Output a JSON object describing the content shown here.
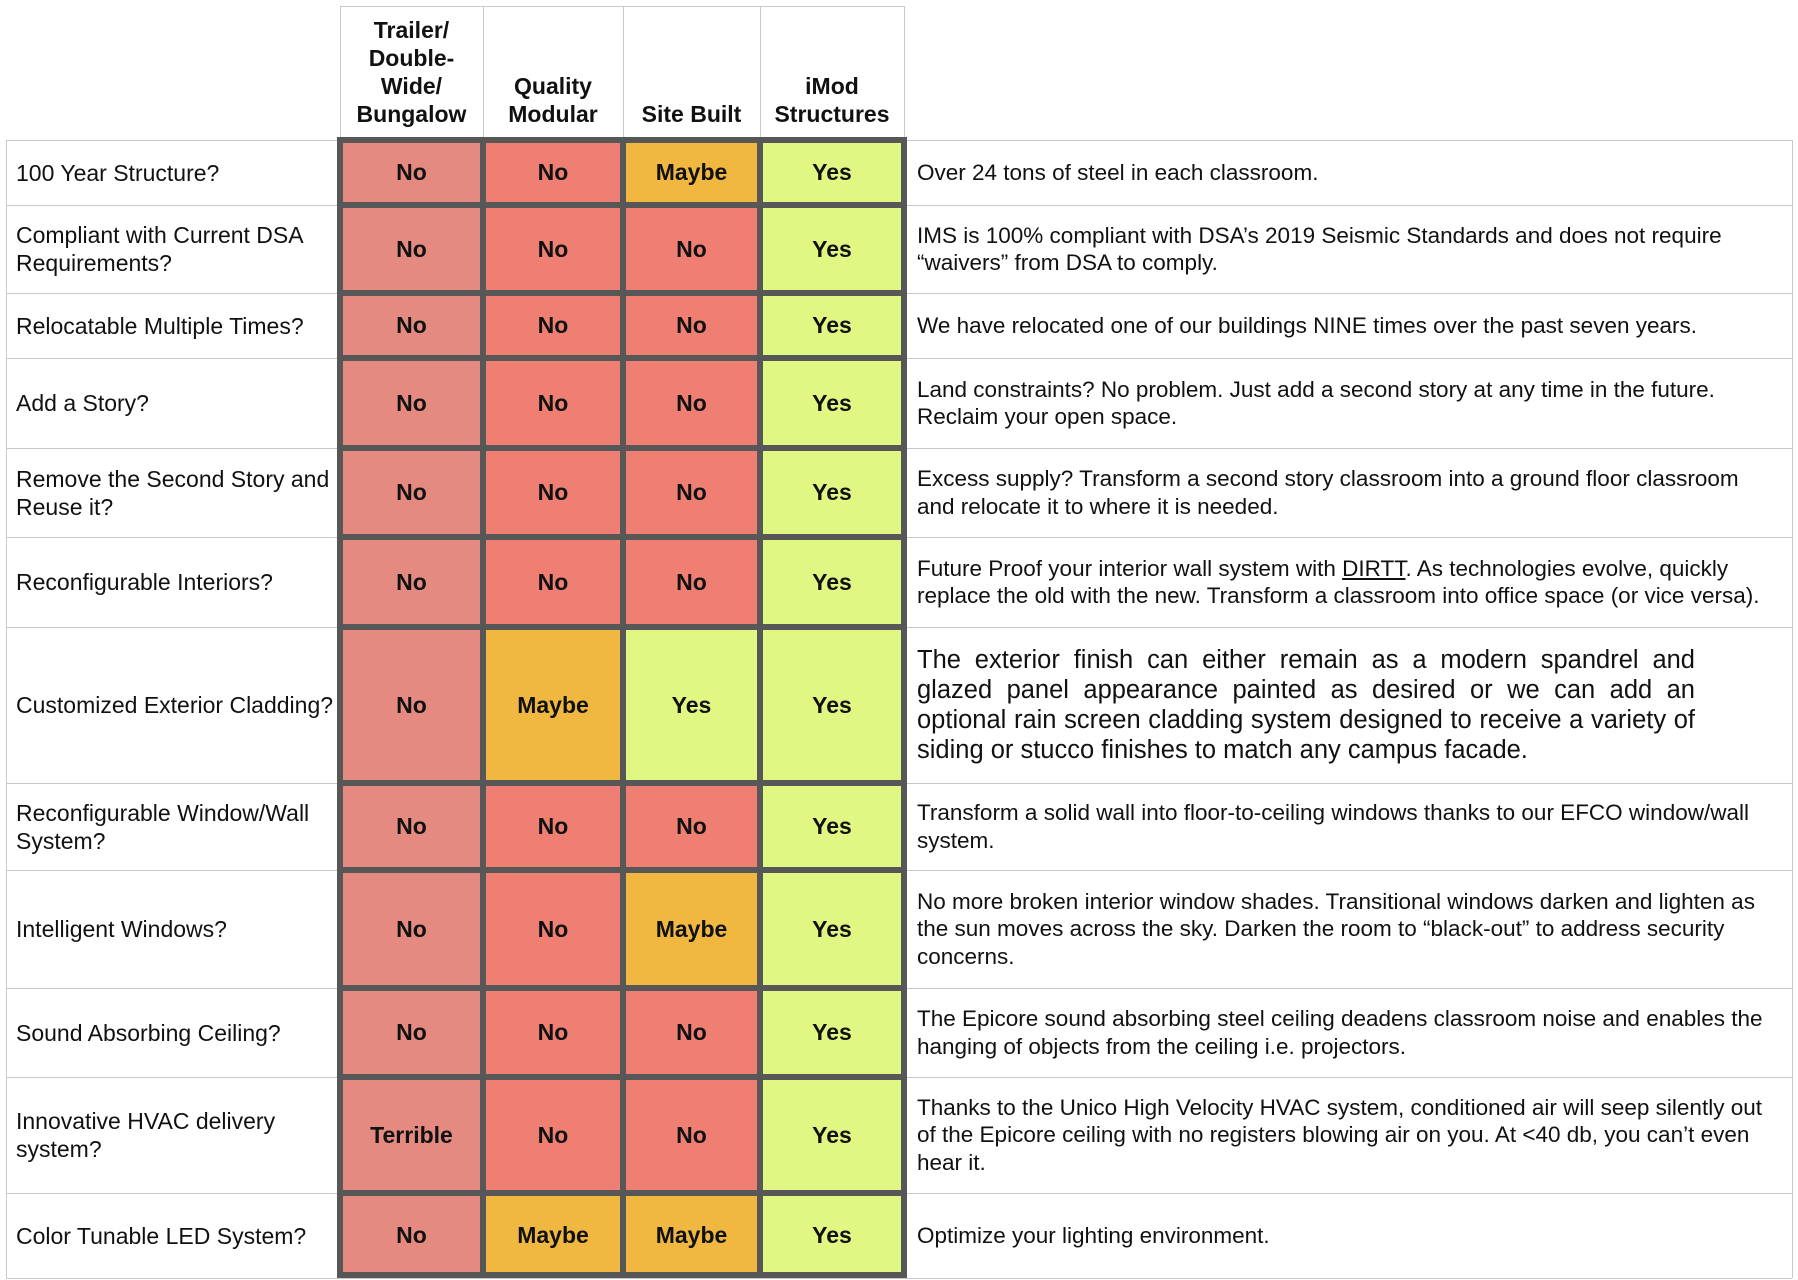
{
  "colors": {
    "No": "#ef7f72",
    "No-first": "#e58a80",
    "Maybe": "#f0b840",
    "Yes": "#e0f783",
    "Terrible": "#e58a80",
    "border": "#575757",
    "rule": "#c9c9c9"
  },
  "columns": [
    "Trailer/\nDouble-\nWide/\nBungalow",
    "Quality\nModular",
    "Site Built",
    "iMod\nStructures"
  ],
  "rows": [
    {
      "criterion": "100 Year Structure?",
      "values": [
        "No",
        "No",
        "Maybe",
        "Yes"
      ],
      "description": "Over 24 tons of steel in each classroom."
    },
    {
      "criterion": "Compliant with Current DSA Requirements?",
      "values": [
        "No",
        "No",
        "No",
        "Yes"
      ],
      "description": "IMS is 100% compliant with DSA’s 2019 Seismic Standards and does not require “waivers” from DSA to comply."
    },
    {
      "criterion": "Relocatable Multiple Times?",
      "values": [
        "No",
        "No",
        "No",
        "Yes"
      ],
      "description": "We have relocated one of our buildings NINE times over the past seven years."
    },
    {
      "criterion": "Add a Story?",
      "values": [
        "No",
        "No",
        "No",
        "Yes"
      ],
      "description": "Land constraints?  No problem.  Just add a second story at any time in the future. Reclaim your open space."
    },
    {
      "criterion": "Remove the Second Story and Reuse it?",
      "values": [
        "No",
        "No",
        "No",
        "Yes"
      ],
      "description": "Excess supply?  Transform a second story classroom into a ground floor classroom and relocate it to where it is needed."
    },
    {
      "criterion": "Reconfigurable Interiors?",
      "values": [
        "No",
        "No",
        "No",
        "Yes"
      ],
      "description_parts": [
        "Future Proof your interior wall system with ",
        "DIRTT",
        ".  As technologies evolve, quickly replace the old with the new.  Transform a classroom into office space (or vice versa)."
      ]
    },
    {
      "criterion": "Customized Exterior Cladding?",
      "values": [
        "No",
        "Maybe",
        "Yes",
        "Yes"
      ],
      "description": "The exterior finish can either remain as a modern spandrel and glazed panel appearance painted as desired or we can add an optional rain screen cladding system designed to receive a variety of siding or stucco finishes to match any campus facade."
    },
    {
      "criterion": "Reconfigurable Window/Wall System?",
      "values": [
        "No",
        "No",
        "No",
        "Yes"
      ],
      "description": "Transform a solid wall into floor-to-ceiling windows thanks to our EFCO window/wall system."
    },
    {
      "criterion": "Intelligent Windows?",
      "values": [
        "No",
        "No",
        "Maybe",
        "Yes"
      ],
      "description": "No more broken interior window shades.  Transitional windows darken and lighten as the sun moves across the sky.  Darken the room to “black-out” to address security concerns."
    },
    {
      "criterion": "Sound Absorbing Ceiling?",
      "values": [
        "No",
        "No",
        "No",
        "Yes"
      ],
      "description": "The Epicore sound absorbing steel ceiling deadens classroom noise and enables the hanging of objects from the ceiling i.e. projectors."
    },
    {
      "criterion": "Innovative HVAC delivery system?",
      "values": [
        "Terrible",
        "No",
        "No",
        "Yes"
      ],
      "description": "Thanks to the Unico High Velocity HVAC system, conditioned air will seep silently out of the Epicore ceiling with no registers blowing air on you. At <40 db, you can’t even hear it."
    },
    {
      "criterion": "Color Tunable LED System?",
      "values": [
        "No",
        "Maybe",
        "Maybe",
        "Yes"
      ],
      "description": "Optimize your lighting environment."
    }
  ]
}
